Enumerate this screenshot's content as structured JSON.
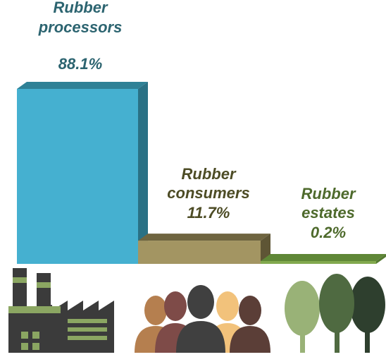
{
  "chart_data": {
    "type": "bar",
    "categories": [
      "Rubber processors",
      "Rubber consumers",
      "Rubber estates"
    ],
    "values": [
      88.1,
      11.7,
      0.2
    ],
    "value_labels": [
      "88.1%",
      "11.7%",
      "0.2%"
    ],
    "category_lines": [
      [
        "Rubber",
        "processors"
      ],
      [
        "Rubber",
        "consumers"
      ],
      [
        "Rubber",
        "estates"
      ]
    ],
    "ylim": [
      0,
      100
    ],
    "grid": false,
    "legend": "none",
    "colors": {
      "front": [
        "#45B0D0",
        "#A39562",
        "#82A94E"
      ],
      "top": [
        "#2F8196",
        "#6F6540",
        "#5F8737"
      ],
      "side": [
        "#2A7185",
        "#5E5535",
        "#557A31"
      ],
      "text": [
        "#2C6470",
        "#4D4C25",
        "#4E6A2C"
      ]
    },
    "icons": [
      "factory-icon",
      "people-icon",
      "trees-icon"
    ]
  }
}
